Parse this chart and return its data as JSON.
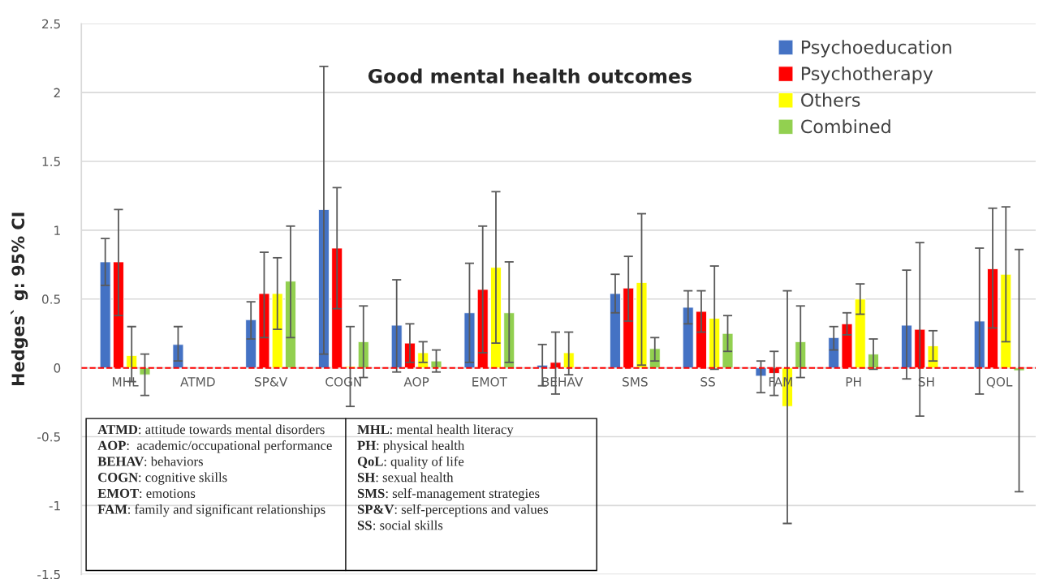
{
  "chart_data": {
    "type": "bar",
    "title": "Good mental health outcomes",
    "ylabel": "Hedges` g: 95% CI",
    "categories": [
      "MHL",
      "ATMD",
      "SP&V",
      "COGN",
      "AOP",
      "EMOT",
      "BEHAV",
      "SMS",
      "SS",
      "FAM",
      "PH",
      "SH",
      "QOL"
    ],
    "series": [
      {
        "name": "Psychoeducation",
        "color": "#4472c4",
        "values": [
          0.77,
          0.17,
          0.35,
          1.15,
          0.31,
          0.4,
          0.02,
          0.54,
          0.44,
          -0.06,
          0.22,
          0.31,
          0.34
        ],
        "errors": [
          [
            0.6,
            0.94
          ],
          [
            0.05,
            0.3
          ],
          [
            0.21,
            0.48
          ],
          [
            0.1,
            2.19
          ],
          [
            -0.03,
            0.64
          ],
          [
            0.04,
            0.76
          ],
          [
            -0.13,
            0.17
          ],
          [
            0.4,
            0.68
          ],
          [
            0.32,
            0.56
          ],
          [
            -0.18,
            0.05
          ],
          [
            0.13,
            0.3
          ],
          [
            -0.08,
            0.71
          ],
          [
            -0.19,
            0.87
          ]
        ]
      },
      {
        "name": "Psychotherapy",
        "color": "#ff0000",
        "values": [
          0.77,
          null,
          0.54,
          0.87,
          0.18,
          0.57,
          0.04,
          0.58,
          0.41,
          -0.04,
          0.32,
          0.28,
          0.72
        ],
        "errors": [
          [
            0.38,
            1.15
          ],
          null,
          [
            0.22,
            0.84
          ],
          [
            0.43,
            1.31
          ],
          [
            0.04,
            0.32
          ],
          [
            0.11,
            1.03
          ],
          [
            -0.19,
            0.26
          ],
          [
            0.34,
            0.81
          ],
          [
            0.26,
            0.56
          ],
          [
            -0.2,
            0.12
          ],
          [
            0.24,
            0.4
          ],
          [
            -0.35,
            0.91
          ],
          [
            0.29,
            1.16
          ]
        ]
      },
      {
        "name": "Others",
        "color": "#ffff00",
        "values": [
          0.09,
          null,
          0.54,
          0.01,
          0.11,
          0.73,
          0.11,
          0.62,
          0.36,
          -0.28,
          0.5,
          0.16,
          0.68
        ],
        "errors": [
          [
            -0.1,
            0.3
          ],
          null,
          [
            0.28,
            0.8
          ],
          [
            -0.28,
            0.3
          ],
          [
            0.04,
            0.19
          ],
          [
            0.18,
            1.28
          ],
          [
            -0.05,
            0.26
          ],
          [
            0.02,
            1.12
          ],
          [
            -0.01,
            0.74
          ],
          [
            -1.13,
            0.56
          ],
          [
            0.39,
            0.61
          ],
          [
            0.05,
            0.27
          ],
          [
            0.19,
            1.17
          ]
        ]
      },
      {
        "name": "Combined",
        "color": "#92d050",
        "values": [
          -0.05,
          null,
          0.63,
          0.19,
          0.05,
          0.4,
          null,
          0.14,
          0.25,
          0.19,
          0.1,
          null,
          -0.02
        ],
        "errors": [
          [
            -0.2,
            0.1
          ],
          null,
          [
            0.22,
            1.03
          ],
          [
            -0.07,
            0.45
          ],
          [
            -0.03,
            0.13
          ],
          [
            0.04,
            0.77
          ],
          null,
          [
            0.05,
            0.22
          ],
          [
            0.12,
            0.38
          ],
          [
            -0.07,
            0.45
          ],
          [
            -0.01,
            0.21
          ],
          null,
          [
            -0.9,
            0.86
          ]
        ]
      }
    ],
    "ylim": [
      -1.5,
      2.5
    ],
    "yticks": [
      -1.5,
      -1,
      -0.5,
      0,
      0.5,
      1,
      1.5,
      2,
      2.5
    ],
    "grid": "y",
    "legend": "top right",
    "ref_lines": [
      {
        "axis": "y",
        "value": 0,
        "color": "#ff0000",
        "line_style": "dashed"
      }
    ],
    "annotations": [
      "ATMD: attitude towards mental disorders",
      "AOP:  academic/occupational performance",
      "BEHAV: behaviors",
      "COGN: cognitive skills",
      "EMOT: emotions",
      "FAM: family and significant relationships",
      "MHL: mental health literacy",
      "PH: physical health",
      "QoL: quality of life",
      "SH: sexual health",
      "SMS: self-management strategies",
      "SP&V: self-perceptions and values",
      "SS: social skills"
    ]
  }
}
